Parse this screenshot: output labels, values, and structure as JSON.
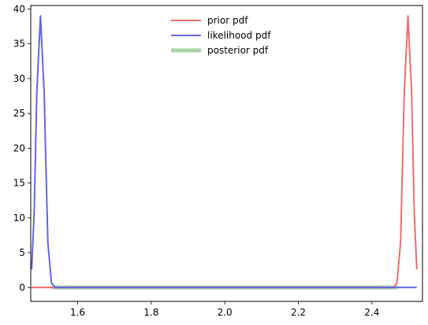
{
  "chart_data": {
    "type": "line",
    "title": "",
    "xlabel": "",
    "ylabel": "",
    "xlim": [
      1.4725,
      2.5375
    ],
    "ylim": [
      -2,
      40.5
    ],
    "xticks": [
      1.6,
      1.8,
      2.0,
      2.2,
      2.4
    ],
    "xtick_labels": [
      "1.6",
      "1.8",
      "2.0",
      "2.2",
      "2.4"
    ],
    "yticks": [
      0,
      5,
      10,
      15,
      20,
      25,
      30,
      35,
      40
    ],
    "ytick_labels": [
      "0",
      "5",
      "10",
      "15",
      "20",
      "25",
      "30",
      "35",
      "40"
    ],
    "grid": false,
    "legend_position": "top-center",
    "series": [
      {
        "name": "prior pdf",
        "color": "#f26c6c",
        "points": [
          [
            1.475,
            0
          ],
          [
            1.54,
            0
          ],
          [
            1.8,
            0
          ],
          [
            2.0,
            0
          ],
          [
            2.2,
            0
          ],
          [
            2.4,
            0
          ],
          [
            2.458,
            0
          ],
          [
            2.468,
            0.6
          ],
          [
            2.478,
            6.5
          ],
          [
            2.488,
            28
          ],
          [
            2.498,
            39
          ],
          [
            2.508,
            28
          ],
          [
            2.515,
            11
          ],
          [
            2.522,
            2.6
          ]
        ]
      },
      {
        "name": "likelihood pdf",
        "color": "#6464e6",
        "points": [
          [
            1.475,
            2.6
          ],
          [
            1.482,
            11
          ],
          [
            1.489,
            28
          ],
          [
            1.499,
            39
          ],
          [
            1.509,
            28
          ],
          [
            1.519,
            6.5
          ],
          [
            1.529,
            0.6
          ],
          [
            1.539,
            0
          ],
          [
            1.8,
            0
          ],
          [
            2.0,
            0
          ],
          [
            2.2,
            0
          ],
          [
            2.4,
            0
          ],
          [
            2.46,
            0
          ],
          [
            2.522,
            0
          ]
        ]
      },
      {
        "name": "posterior pdf",
        "color": "#a9d4a8",
        "points": [
          [
            1.53,
            0
          ],
          [
            2.47,
            0
          ]
        ]
      }
    ]
  }
}
